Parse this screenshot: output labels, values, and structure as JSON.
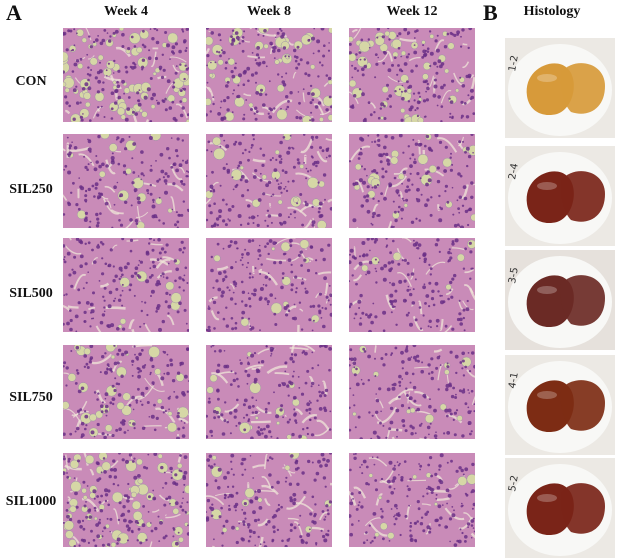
{
  "panel_a": {
    "letter": "A"
  },
  "panel_b": {
    "letter": "B",
    "heading": "Histology"
  },
  "columns": [
    "Week 4",
    "Week 8",
    "Week 12"
  ],
  "rows": [
    "CON",
    "SIL250",
    "SIL500",
    "SIL750",
    "SIL1000"
  ],
  "photo_marks": [
    "1-2",
    "2-4",
    "3-5",
    "4-1",
    "5-2"
  ],
  "colors": {
    "tissue_pink": "#c98bb8",
    "nuclei_purple": "#6a2f86",
    "vacuole_green": "#d6d7a6",
    "liver_pale": "#d79a3a",
    "liver_dark": "#7a2418",
    "background_white": "#ffffff"
  }
}
